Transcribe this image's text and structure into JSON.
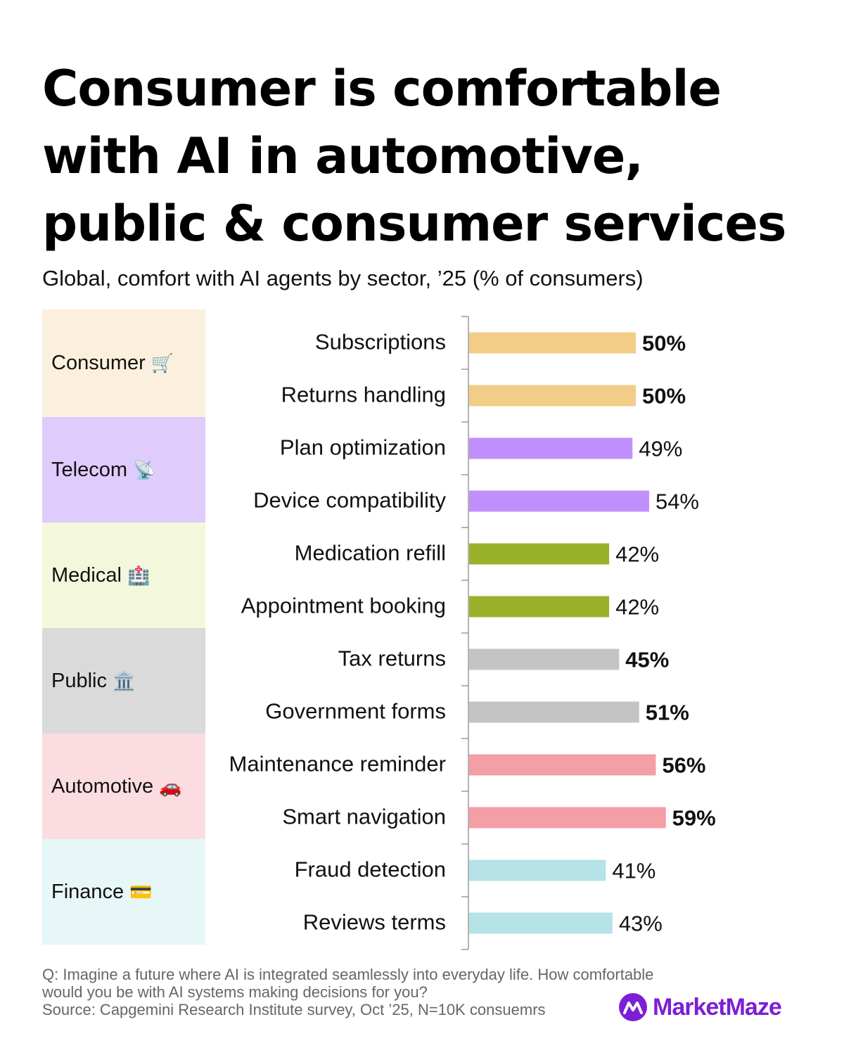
{
  "title_lines": [
    "Consumer is comfortable",
    "with AI in automotive,",
    "public & consumer services"
  ],
  "subtitle": "Global, comfort with AI agents by sector, ’25 (% of consumers)",
  "sectors": [
    {
      "name": "Consumer",
      "emoji": "🛒",
      "bg": "#fbf0dd",
      "bar": "#f2cd87"
    },
    {
      "name": "Telecom",
      "emoji": "📡",
      "bg": "#e0cbfd",
      "bar": "#c18ffb"
    },
    {
      "name": "Medical",
      "emoji": "🏥",
      "bg": "#f3f8dc",
      "bar": "#9ab22a"
    },
    {
      "name": "Public",
      "emoji": "🏛️",
      "bg": "#dadada",
      "bar": "#c4c4c4"
    },
    {
      "name": "Automotive",
      "emoji": "🚗",
      "bg": "#fbdde1",
      "bar": "#f49ea6"
    },
    {
      "name": "Finance",
      "emoji": "💳",
      "bg": "#e7f6f6",
      "bar": "#b5e3e7"
    }
  ],
  "chart_data": {
    "type": "bar",
    "orientation": "horizontal",
    "categories": [
      "Subscriptions",
      "Returns handling",
      "Plan optimization",
      "Device compatibility",
      "Medication refill",
      "Appointment booking",
      "Tax returns",
      "Government forms",
      "Maintenance reminder",
      "Smart navigation",
      "Fraud detection",
      "Reviews terms"
    ],
    "values": [
      50,
      50,
      49,
      54,
      42,
      42,
      45,
      51,
      56,
      59,
      41,
      43
    ],
    "value_labels": [
      "50%",
      "50%",
      "49%",
      "54%",
      "42%",
      "42%",
      "45%",
      "51%",
      "56%",
      "59%",
      "41%",
      "43%"
    ],
    "bold": [
      true,
      true,
      false,
      false,
      false,
      false,
      true,
      true,
      true,
      true,
      false,
      false
    ],
    "sector_index": [
      0,
      0,
      1,
      1,
      2,
      2,
      3,
      3,
      4,
      4,
      5,
      5
    ],
    "xlim": [
      0,
      100
    ],
    "grid": false
  },
  "footnote": {
    "question_lines": [
      "Q: Imagine a future where AI is integrated seamlessly into everyday life. How comfortable",
      "would you be with AI systems making decisions for you?"
    ],
    "source": "Source: Capgemini Research Institute survey, Oct ’25, N=10K consuemrs"
  },
  "brand": {
    "name": "MarketMaze",
    "icon": "logo-m-icon",
    "color": "#7b1fd6"
  }
}
